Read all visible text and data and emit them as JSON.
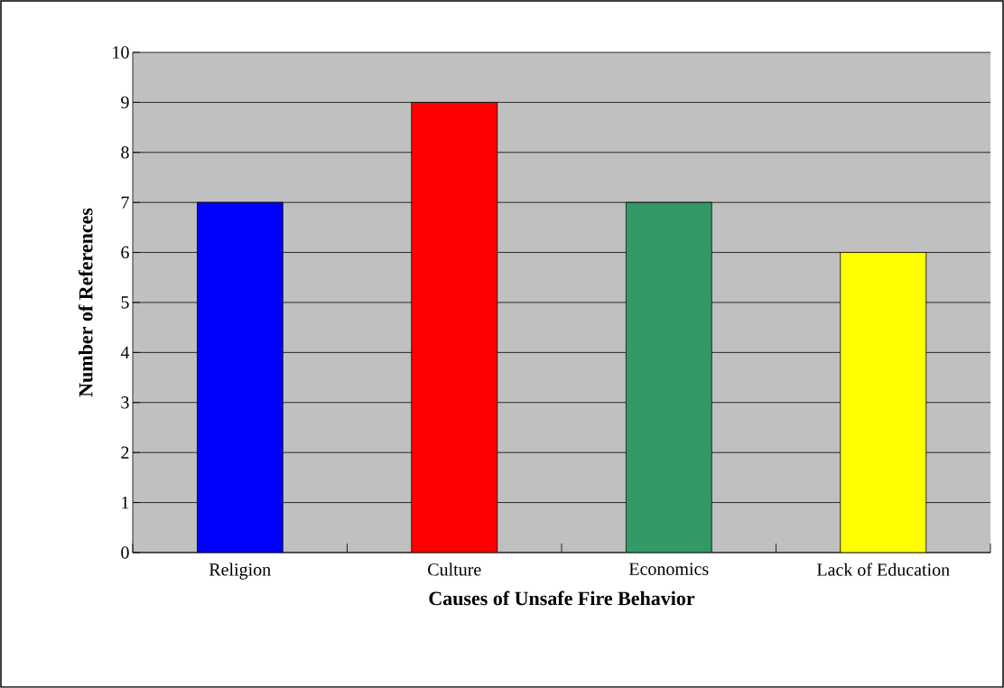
{
  "chart_data": {
    "type": "bar",
    "xlabel": "Causes of Unsafe Fire Behavior",
    "ylabel": "Number of References",
    "categories": [
      "Religion",
      "Culture",
      "Economics",
      "Lack of Education"
    ],
    "values": [
      7,
      9,
      7,
      6
    ],
    "colors": [
      "#0000ff",
      "#ff0000",
      "#339966",
      "#ffff00"
    ],
    "ylim": [
      0,
      10
    ],
    "yticks": [
      0,
      1,
      2,
      3,
      4,
      5,
      6,
      7,
      8,
      9,
      10
    ],
    "grid": "y"
  }
}
